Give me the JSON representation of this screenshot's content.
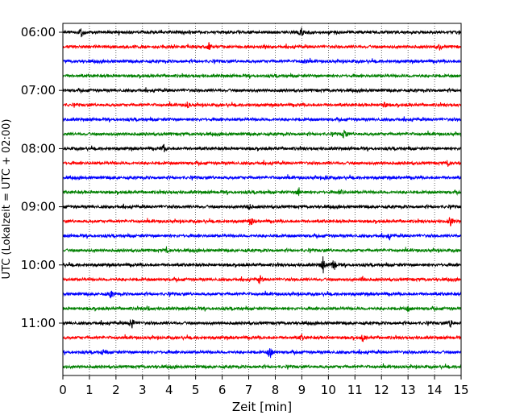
{
  "chart_data": {
    "type": "line",
    "xlabel": "Zeit  [min]",
    "ylabel": "UTC (Lokalzeit = UTC + 02:00)",
    "xlim": [
      0,
      15
    ],
    "xticks": [
      "0",
      "1",
      "2",
      "3",
      "4",
      "5",
      "6",
      "7",
      "8",
      "9",
      "10",
      "11",
      "12",
      "13",
      "14",
      "15"
    ],
    "ytick_labels": [
      "06:00",
      "07:00",
      "08:00",
      "09:00",
      "10:00",
      "11:00"
    ],
    "traces_start": "06:00",
    "trace_interval_min": 15,
    "trace_count": 24,
    "trace_colors": [
      "#000000",
      "#ff0000",
      "#0000ff",
      "#008000"
    ],
    "grid_x": true,
    "events": [
      {
        "trace": 0,
        "x": 0.7,
        "amp": 1.0
      },
      {
        "trace": 0,
        "x": 9.0,
        "amp": 0.7
      },
      {
        "trace": 1,
        "x": 5.5,
        "amp": 0.5
      },
      {
        "trace": 1,
        "x": 14.2,
        "amp": 0.4
      },
      {
        "trace": 2,
        "x": 9.1,
        "amp": 0.4
      },
      {
        "trace": 5,
        "x": 4.7,
        "amp": 0.4
      },
      {
        "trace": 5,
        "x": 12.1,
        "amp": 0.5
      },
      {
        "trace": 7,
        "x": 10.6,
        "amp": 0.8
      },
      {
        "trace": 8,
        "x": 3.8,
        "amp": 0.5
      },
      {
        "trace": 9,
        "x": 14.5,
        "amp": 0.4
      },
      {
        "trace": 10,
        "x": 9.9,
        "amp": 0.4
      },
      {
        "trace": 11,
        "x": 8.9,
        "amp": 0.7
      },
      {
        "trace": 11,
        "x": 10.5,
        "amp": 0.4
      },
      {
        "trace": 12,
        "x": 7.0,
        "amp": 0.5
      },
      {
        "trace": 13,
        "x": 7.1,
        "amp": 0.6
      },
      {
        "trace": 13,
        "x": 14.6,
        "amp": 0.6
      },
      {
        "trace": 14,
        "x": 12.3,
        "amp": 0.4
      },
      {
        "trace": 15,
        "x": 3.9,
        "amp": 0.4
      },
      {
        "trace": 16,
        "x": 9.8,
        "amp": 1.1
      },
      {
        "trace": 16,
        "x": 10.2,
        "amp": 1.0
      },
      {
        "trace": 17,
        "x": 7.4,
        "amp": 0.6
      },
      {
        "trace": 17,
        "x": 11.3,
        "amp": 0.4
      },
      {
        "trace": 18,
        "x": 1.8,
        "amp": 0.6
      },
      {
        "trace": 19,
        "x": 3.2,
        "amp": 0.5
      },
      {
        "trace": 19,
        "x": 13.0,
        "amp": 0.4
      },
      {
        "trace": 20,
        "x": 2.6,
        "amp": 1.0
      },
      {
        "trace": 20,
        "x": 14.6,
        "amp": 0.6
      },
      {
        "trace": 21,
        "x": 11.3,
        "amp": 0.6
      },
      {
        "trace": 21,
        "x": 9.0,
        "amp": 0.4
      },
      {
        "trace": 22,
        "x": 7.8,
        "amp": 1.0
      },
      {
        "trace": 22,
        "x": 1.5,
        "amp": 0.4
      }
    ]
  }
}
